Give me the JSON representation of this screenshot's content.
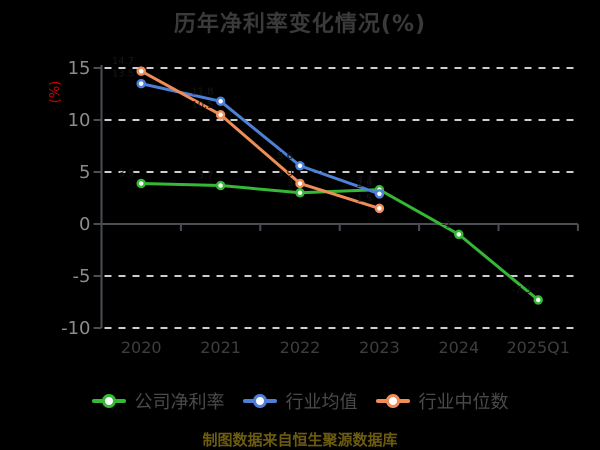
{
  "title": "历年净利率变化情况(%)",
  "source_note": "制图数据来自恒生聚源数据库",
  "chart_data": {
    "type": "line",
    "title": "历年净利率变化情况(%)",
    "categories": [
      "2020",
      "2021",
      "2022",
      "2023",
      "2024",
      "2025Q1"
    ],
    "series": [
      {
        "name": "公司净利率",
        "color": "#36b836",
        "values": [
          3.9,
          3.7,
          3.0,
          3.3,
          -1.0,
          -7.3
        ]
      },
      {
        "name": "行业均值",
        "color": "#4d80d6",
        "values": [
          13.5,
          11.8,
          5.6,
          2.9,
          null,
          null
        ]
      },
      {
        "name": "行业中位数",
        "color": "#ef8d58",
        "values": [
          14.7,
          10.5,
          3.9,
          1.5,
          null,
          null
        ]
      }
    ],
    "xlabel": "",
    "ylabel": "(%)",
    "ylim": [
      -10,
      15
    ],
    "yticks": [
      -10,
      -5,
      0,
      5,
      10,
      15
    ],
    "grid": "horizontal-dashed",
    "legend_position": "bottom",
    "marker": "circle-white-fill",
    "point_label_color": "#161616"
  },
  "colors": {
    "background": "#000000",
    "title_text": "#3a3a3a",
    "grid_line": "#cdcdcd",
    "axis_line": "#4a4d52",
    "y_tick_label": "#8c8c8c",
    "x_tick_label": "#3e3e3e",
    "y_unit_label": "#d40000",
    "legend_text": "#4a4a4a",
    "source_note_text": "#6d5c10"
  }
}
